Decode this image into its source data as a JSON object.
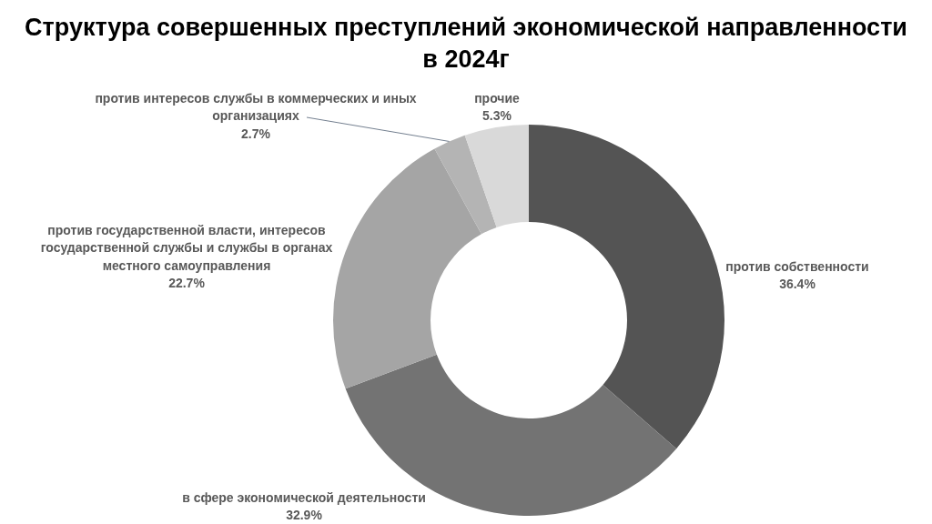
{
  "chart_data": {
    "type": "donut",
    "title": "Структура совершенных преступлений экономической направленности в 2024г",
    "categories": [
      "против собственности",
      "в сфере экономической деятельности",
      "против государственной власти, интересов государственной службы и службы в органах местного самоуправления",
      "против интересов службы в коммерческих и иных организациях",
      "прочие"
    ],
    "values": [
      36.4,
      32.9,
      22.7,
      2.7,
      5.3
    ],
    "value_labels": [
      "36.4%",
      "32.9%",
      "22.7%",
      "2.7%",
      "5.3%"
    ],
    "colors": [
      "#545454",
      "#737373",
      "#a5a5a5",
      "#b4b4b4",
      "#d9d9d9"
    ],
    "legend": false
  }
}
